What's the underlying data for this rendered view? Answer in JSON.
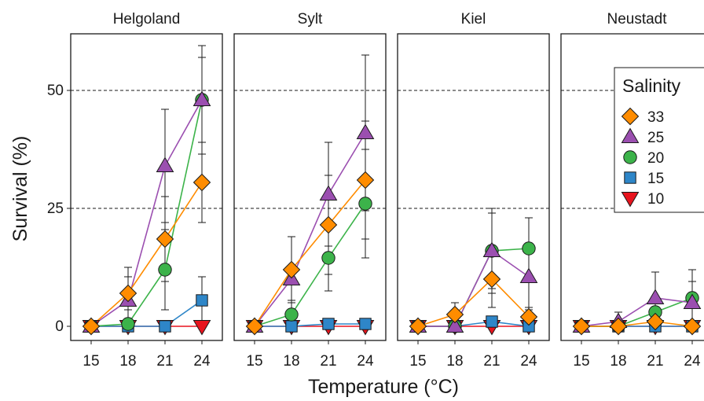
{
  "chart_data": {
    "type": "line",
    "xlabel": "Temperature (°C)",
    "ylabel": "Survival (%)",
    "x": [
      15,
      18,
      21,
      24
    ],
    "x_tick_labels": [
      "15",
      "18",
      "21",
      "24"
    ],
    "y_ticks": [
      0,
      25,
      50
    ],
    "y_tick_labels": [
      "0",
      "25",
      "50"
    ],
    "ylim": [
      -3,
      62
    ],
    "reference_lines": [
      25,
      50
    ],
    "grid": false,
    "legend": {
      "title": "Salinity",
      "placement": "top-right",
      "entries": [
        {
          "label": "33",
          "color": "#ff8c00",
          "marker": "diamond"
        },
        {
          "label": "25",
          "color": "#9b4fb0",
          "marker": "triangle-up"
        },
        {
          "label": "20",
          "color": "#3cb34a",
          "marker": "circle"
        },
        {
          "label": "15",
          "color": "#2e86c8",
          "marker": "square"
        },
        {
          "label": "10",
          "color": "#e8141e",
          "marker": "triangle-down"
        }
      ]
    },
    "panels": [
      {
        "title": "Helgoland",
        "series": [
          {
            "name": "33",
            "values": [
              0,
              7,
              18.5,
              30.5
            ],
            "errors": [
              0,
              3.5,
              9,
              8.5
            ]
          },
          {
            "name": "25",
            "values": [
              0,
              5.5,
              34,
              48
            ],
            "errors": [
              0,
              7,
              12,
              11.5
            ]
          },
          {
            "name": "20",
            "values": [
              0,
              0.5,
              12,
              48
            ],
            "errors": [
              0,
              1,
              8.5,
              9
            ]
          },
          {
            "name": "15",
            "values": [
              0,
              0,
              0,
              5.5
            ],
            "errors": [
              0,
              0,
              0,
              5
            ]
          },
          {
            "name": "10",
            "values": [
              0,
              0,
              0,
              0
            ],
            "errors": [
              0,
              0,
              0,
              0
            ]
          }
        ]
      },
      {
        "title": "Sylt",
        "series": [
          {
            "name": "33",
            "values": [
              0,
              12,
              21.5,
              31
            ],
            "errors": [
              0,
              7,
              10.5,
              12.5
            ]
          },
          {
            "name": "25",
            "values": [
              0,
              10,
              28,
              41
            ],
            "errors": [
              0,
              9,
              11,
              16.5
            ]
          },
          {
            "name": "20",
            "values": [
              0,
              2.5,
              14.5,
              26
            ],
            "errors": [
              0,
              3,
              7,
              11.5
            ]
          },
          {
            "name": "15",
            "values": [
              0,
              0,
              0.5,
              0.5
            ],
            "errors": [
              0,
              0,
              0.5,
              0.5
            ]
          },
          {
            "name": "10",
            "values": [
              0,
              0,
              0,
              0
            ],
            "errors": [
              0,
              0,
              0,
              0
            ]
          }
        ]
      },
      {
        "title": "Kiel",
        "series": [
          {
            "name": "33",
            "values": [
              0,
              2.5,
              10,
              2
            ],
            "errors": [
              0,
              2.5,
              6,
              2
            ]
          },
          {
            "name": "25",
            "values": [
              0,
              0,
              16,
              10.5
            ],
            "errors": [
              0,
              0,
              9,
              7
            ]
          },
          {
            "name": "20",
            "values": [
              0,
              0,
              16,
              16.5
            ],
            "errors": [
              0,
              0,
              8,
              6.5
            ]
          },
          {
            "name": "15",
            "values": [
              0,
              0,
              1,
              0
            ],
            "errors": [
              0,
              0,
              1,
              0
            ]
          },
          {
            "name": "10",
            "values": [
              0,
              0,
              0,
              0
            ],
            "errors": [
              0,
              0,
              0,
              0
            ]
          }
        ]
      },
      {
        "title": "Neustadt",
        "series": [
          {
            "name": "33",
            "values": [
              0,
              0,
              1,
              0
            ],
            "errors": [
              0,
              0,
              1,
              0
            ]
          },
          {
            "name": "25",
            "values": [
              0,
              1,
              6,
              5
            ],
            "errors": [
              0,
              2,
              5.5,
              4.5
            ]
          },
          {
            "name": "20",
            "values": [
              0,
              0,
              3,
              6
            ],
            "errors": [
              0,
              0,
              3,
              6
            ]
          },
          {
            "name": "15",
            "values": [
              0,
              0,
              0,
              0
            ],
            "errors": [
              0,
              0,
              0,
              0
            ]
          },
          {
            "name": "10",
            "values": [
              0,
              0,
              0,
              0
            ],
            "errors": [
              0,
              0,
              0,
              0
            ]
          }
        ]
      }
    ]
  }
}
